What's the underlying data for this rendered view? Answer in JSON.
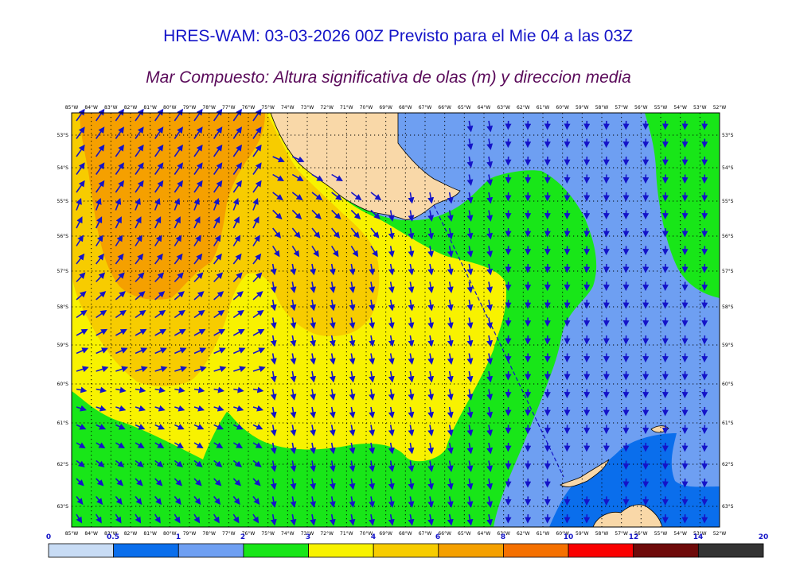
{
  "header": {
    "title": "HRES-WAM: 03-03-2026 00Z Previsto para el Mie 04 a las 03Z",
    "subtitle": "Mar Compuesto: Altura significativa de olas (m) y direccion media"
  },
  "map": {
    "lon_labels": [
      "85°W",
      "84°W",
      "83°W",
      "82°W",
      "81°W",
      "80°W",
      "79°W",
      "78°W",
      "77°W",
      "76°W",
      "75°W",
      "74°W",
      "73°W",
      "72°W",
      "71°W",
      "70°W",
      "69°W",
      "68°W",
      "67°W",
      "66°W",
      "65°W",
      "64°W",
      "63°W",
      "62°W",
      "61°W",
      "60°W",
      "59°W",
      "58°W",
      "57°W",
      "56°W",
      "55°W",
      "54°W",
      "53°W",
      "52°W"
    ],
    "lat_labels": [
      "53°S",
      "54°S",
      "55°S",
      "56°S",
      "57°S",
      "58°S",
      "59°S",
      "60°S",
      "61°S",
      "62°S",
      "63°S"
    ],
    "colors": {
      "land": "#f9d8a8",
      "lightblue": "#6e9ff2",
      "blue": "#0a6eec",
      "green": "#18e618",
      "yellow": "#f8f200",
      "gold": "#f7cc00",
      "orange": "#f5a000",
      "arrow": "#1414c8"
    }
  },
  "colorbar": {
    "labels": [
      "0",
      "0.5",
      "1",
      "2",
      "3",
      "4",
      "6",
      "8",
      "10",
      "12",
      "14",
      "20"
    ],
    "colors": [
      "#c8dcf5",
      "#0a6eec",
      "#6e9ff2",
      "#18e618",
      "#f8f200",
      "#f7cc00",
      "#f5a000",
      "#f57000",
      "#fa0000",
      "#6e0a0a",
      "#333333"
    ]
  }
}
